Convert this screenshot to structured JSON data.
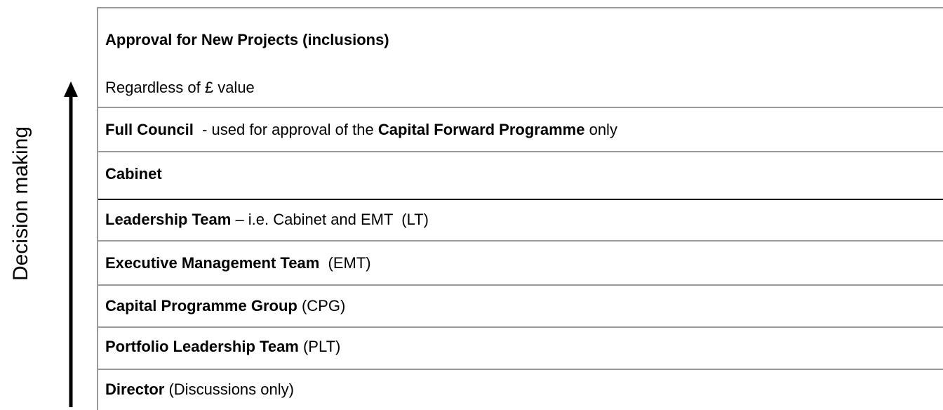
{
  "side_label": "Decision making",
  "header": {
    "title": "Approval for New Projects (inclusions)",
    "subtitle": "Regardless of £ value"
  },
  "rows": [
    [
      {
        "text": "Full Council",
        "bold": true
      },
      {
        "text": "  - used for approval of the ",
        "bold": false
      },
      {
        "text": "Capital Forward Programme",
        "bold": true
      },
      {
        "text": " only",
        "bold": false
      }
    ],
    [
      {
        "text": "Cabinet",
        "bold": true
      }
    ],
    [
      {
        "text": "Leadership Team",
        "bold": true
      },
      {
        "text": " – i.e. Cabinet and EMT  (LT)",
        "bold": false
      }
    ],
    [
      {
        "text": "Executive Management Team",
        "bold": true
      },
      {
        "text": "  (EMT)",
        "bold": false
      }
    ],
    [
      {
        "text": "Capital Programme Group",
        "bold": true
      },
      {
        "text": " (CPG)",
        "bold": false
      }
    ],
    [
      {
        "text": "Portfolio Leadership Team",
        "bold": true
      },
      {
        "text": " (PLT)",
        "bold": false
      }
    ],
    [
      {
        "text": "Director",
        "bold": true
      },
      {
        "text": " (Discussions only)",
        "bold": false
      }
    ]
  ]
}
